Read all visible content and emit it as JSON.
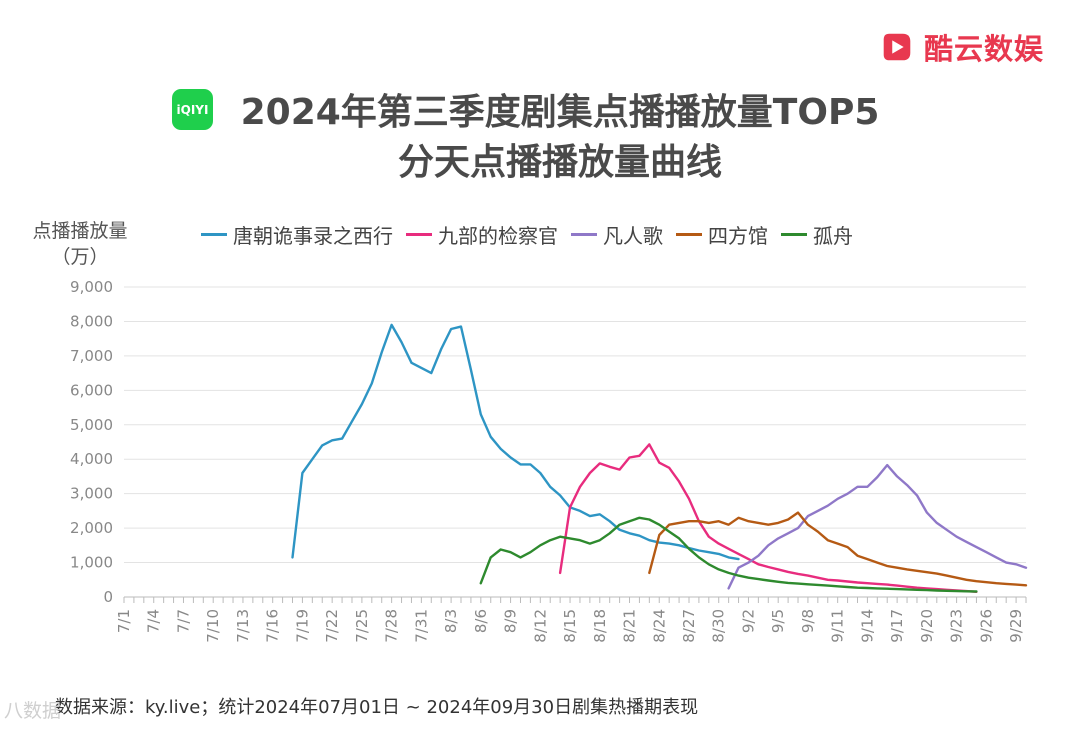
{
  "brand": {
    "name": "酷云数娱",
    "color": "#e8384f"
  },
  "platform_logo": {
    "text": "iQIYI",
    "color": "#1fcf4c"
  },
  "footer": {
    "source": "数据来源：ky.live；统计2024年07月01日 ~ 2024年09月30日剧集热播期表现"
  },
  "watermark": {
    "text": "八数据"
  },
  "chart_data": {
    "type": "line",
    "title": [
      "2024年第三季度剧集点播播放量TOP5",
      "分天点播播放量曲线"
    ],
    "ylabel": [
      "点播播放量",
      "（万）"
    ],
    "ylim": [
      0,
      9000
    ],
    "yticks": [
      0,
      1000,
      2000,
      3000,
      4000,
      5000,
      6000,
      7000,
      8000,
      9000
    ],
    "ytick_labels": [
      "0",
      "1,000",
      "2,000",
      "3,000",
      "4,000",
      "5,000",
      "6,000",
      "7,000",
      "8,000",
      "9,000"
    ],
    "xlim": [
      "7/1",
      "9/30"
    ],
    "x_tick_labels": [
      "7/1",
      "7/4",
      "7/7",
      "7/10",
      "7/13",
      "7/16",
      "7/19",
      "7/22",
      "7/25",
      "7/28",
      "7/31",
      "8/3",
      "8/6",
      "8/9",
      "8/12",
      "8/15",
      "8/18",
      "8/21",
      "8/24",
      "8/27",
      "8/30",
      "9/2",
      "9/5",
      "9/8",
      "9/11",
      "9/14",
      "9/17",
      "9/20",
      "9/23",
      "9/26",
      "9/29"
    ],
    "grid": "horizontal",
    "legend_position": "top",
    "series": [
      {
        "name": "唐朝诡事录之西行",
        "color": "#2e95c4",
        "points": [
          [
            "7/18",
            1150
          ],
          [
            "7/19",
            3600
          ],
          [
            "7/20",
            4000
          ],
          [
            "7/21",
            4400
          ],
          [
            "7/22",
            4550
          ],
          [
            "7/23",
            4600
          ],
          [
            "7/24",
            5100
          ],
          [
            "7/25",
            5600
          ],
          [
            "7/26",
            6200
          ],
          [
            "7/27",
            7100
          ],
          [
            "7/28",
            7900
          ],
          [
            "7/29",
            7400
          ],
          [
            "7/30",
            6800
          ],
          [
            "7/31",
            6650
          ],
          [
            "8/1",
            6500
          ],
          [
            "8/2",
            7200
          ],
          [
            "8/3",
            7780
          ],
          [
            "8/4",
            7850
          ],
          [
            "8/5",
            6600
          ],
          [
            "8/6",
            5300
          ],
          [
            "8/7",
            4650
          ],
          [
            "8/8",
            4300
          ],
          [
            "8/9",
            4050
          ],
          [
            "8/10",
            3850
          ],
          [
            "8/11",
            3850
          ],
          [
            "8/12",
            3600
          ],
          [
            "8/13",
            3200
          ],
          [
            "8/14",
            2950
          ],
          [
            "8/15",
            2600
          ],
          [
            "8/16",
            2500
          ],
          [
            "8/17",
            2350
          ],
          [
            "8/18",
            2400
          ],
          [
            "8/19",
            2200
          ],
          [
            "8/20",
            1950
          ],
          [
            "8/21",
            1850
          ],
          [
            "8/22",
            1780
          ],
          [
            "8/23",
            1650
          ],
          [
            "8/24",
            1580
          ],
          [
            "8/25",
            1550
          ],
          [
            "8/26",
            1500
          ],
          [
            "8/27",
            1420
          ],
          [
            "8/28",
            1350
          ],
          [
            "8/29",
            1300
          ],
          [
            "8/30",
            1250
          ],
          [
            "8/31",
            1150
          ],
          [
            "9/1",
            1100
          ]
        ]
      },
      {
        "name": "九部的检察官",
        "color": "#e82c7e",
        "points": [
          [
            "8/14",
            700
          ],
          [
            "8/15",
            2600
          ],
          [
            "8/16",
            3200
          ],
          [
            "8/17",
            3600
          ],
          [
            "8/18",
            3880
          ],
          [
            "8/19",
            3780
          ],
          [
            "8/20",
            3700
          ],
          [
            "8/21",
            4050
          ],
          [
            "8/22",
            4100
          ],
          [
            "8/23",
            4430
          ],
          [
            "8/24",
            3900
          ],
          [
            "8/25",
            3750
          ],
          [
            "8/26",
            3350
          ],
          [
            "8/27",
            2850
          ],
          [
            "8/28",
            2200
          ],
          [
            "8/29",
            1750
          ],
          [
            "8/30",
            1550
          ],
          [
            "8/31",
            1400
          ],
          [
            "9/1",
            1250
          ],
          [
            "9/2",
            1100
          ],
          [
            "9/3",
            950
          ],
          [
            "9/4",
            870
          ],
          [
            "9/5",
            800
          ],
          [
            "9/6",
            730
          ],
          [
            "9/7",
            670
          ],
          [
            "9/8",
            620
          ],
          [
            "9/9",
            560
          ],
          [
            "9/10",
            500
          ],
          [
            "9/11",
            480
          ],
          [
            "9/12",
            450
          ],
          [
            "9/13",
            420
          ],
          [
            "9/14",
            400
          ],
          [
            "9/15",
            380
          ],
          [
            "9/16",
            360
          ],
          [
            "9/17",
            330
          ],
          [
            "9/18",
            300
          ],
          [
            "9/19",
            270
          ],
          [
            "9/20",
            250
          ],
          [
            "9/21",
            230
          ],
          [
            "9/22",
            210
          ],
          [
            "9/23",
            190
          ],
          [
            "9/24",
            170
          ],
          [
            "9/25",
            150
          ]
        ]
      },
      {
        "name": "凡人歌",
        "color": "#8f78c8",
        "points": [
          [
            "8/31",
            250
          ],
          [
            "9/1",
            850
          ],
          [
            "9/2",
            1000
          ],
          [
            "9/3",
            1200
          ],
          [
            "9/4",
            1500
          ],
          [
            "9/5",
            1700
          ],
          [
            "9/6",
            1850
          ],
          [
            "9/7",
            2000
          ],
          [
            "9/8",
            2350
          ],
          [
            "9/9",
            2500
          ],
          [
            "9/10",
            2650
          ],
          [
            "9/11",
            2850
          ],
          [
            "9/12",
            3000
          ],
          [
            "9/13",
            3200
          ],
          [
            "9/14",
            3200
          ],
          [
            "9/15",
            3480
          ],
          [
            "9/16",
            3830
          ],
          [
            "9/17",
            3500
          ],
          [
            "9/18",
            3250
          ],
          [
            "9/19",
            2950
          ],
          [
            "9/20",
            2450
          ],
          [
            "9/21",
            2150
          ],
          [
            "9/22",
            1950
          ],
          [
            "9/23",
            1750
          ],
          [
            "9/24",
            1600
          ],
          [
            "9/25",
            1450
          ],
          [
            "9/26",
            1300
          ],
          [
            "9/27",
            1150
          ],
          [
            "9/28",
            1000
          ],
          [
            "9/29",
            950
          ],
          [
            "9/30",
            850
          ]
        ]
      },
      {
        "name": "四方馆",
        "color": "#b55a14",
        "points": [
          [
            "8/23",
            700
          ],
          [
            "8/24",
            1800
          ],
          [
            "8/25",
            2100
          ],
          [
            "8/26",
            2150
          ],
          [
            "8/27",
            2200
          ],
          [
            "8/28",
            2200
          ],
          [
            "8/29",
            2150
          ],
          [
            "8/30",
            2200
          ],
          [
            "8/31",
            2100
          ],
          [
            "9/1",
            2300
          ],
          [
            "9/2",
            2200
          ],
          [
            "9/3",
            2150
          ],
          [
            "9/4",
            2100
          ],
          [
            "9/5",
            2150
          ],
          [
            "9/6",
            2250
          ],
          [
            "9/7",
            2450
          ],
          [
            "9/8",
            2100
          ],
          [
            "9/9",
            1900
          ],
          [
            "9/10",
            1650
          ],
          [
            "9/11",
            1550
          ],
          [
            "9/12",
            1450
          ],
          [
            "9/13",
            1200
          ],
          [
            "9/14",
            1100
          ],
          [
            "9/15",
            1000
          ],
          [
            "9/16",
            900
          ],
          [
            "9/17",
            850
          ],
          [
            "9/18",
            800
          ],
          [
            "9/19",
            760
          ],
          [
            "9/20",
            720
          ],
          [
            "9/21",
            680
          ],
          [
            "9/22",
            620
          ],
          [
            "9/23",
            560
          ],
          [
            "9/24",
            500
          ],
          [
            "9/25",
            460
          ],
          [
            "9/26",
            430
          ],
          [
            "9/27",
            400
          ],
          [
            "9/28",
            380
          ],
          [
            "9/29",
            360
          ],
          [
            "9/30",
            340
          ]
        ]
      },
      {
        "name": "孤舟",
        "color": "#2e8a2e",
        "points": [
          [
            "8/6",
            400
          ],
          [
            "8/7",
            1150
          ],
          [
            "8/8",
            1380
          ],
          [
            "8/9",
            1300
          ],
          [
            "8/10",
            1150
          ],
          [
            "8/11",
            1300
          ],
          [
            "8/12",
            1500
          ],
          [
            "8/13",
            1650
          ],
          [
            "8/14",
            1750
          ],
          [
            "8/15",
            1700
          ],
          [
            "8/16",
            1650
          ],
          [
            "8/17",
            1550
          ],
          [
            "8/18",
            1650
          ],
          [
            "8/19",
            1850
          ],
          [
            "8/20",
            2100
          ],
          [
            "8/21",
            2200
          ],
          [
            "8/22",
            2300
          ],
          [
            "8/23",
            2250
          ],
          [
            "8/24",
            2100
          ],
          [
            "8/25",
            1900
          ],
          [
            "8/26",
            1700
          ],
          [
            "8/27",
            1400
          ],
          [
            "8/28",
            1150
          ],
          [
            "8/29",
            950
          ],
          [
            "8/30",
            800
          ],
          [
            "8/31",
            700
          ],
          [
            "9/1",
            620
          ],
          [
            "9/2",
            560
          ],
          [
            "9/3",
            520
          ],
          [
            "9/4",
            480
          ],
          [
            "9/5",
            440
          ],
          [
            "9/6",
            410
          ],
          [
            "9/7",
            390
          ],
          [
            "9/8",
            370
          ],
          [
            "9/9",
            350
          ],
          [
            "9/10",
            330
          ],
          [
            "9/11",
            310
          ],
          [
            "9/12",
            290
          ],
          [
            "9/13",
            270
          ],
          [
            "9/14",
            260
          ],
          [
            "9/15",
            250
          ],
          [
            "9/16",
            240
          ],
          [
            "9/17",
            230
          ],
          [
            "9/18",
            220
          ],
          [
            "9/19",
            210
          ],
          [
            "9/20",
            200
          ],
          [
            "9/21",
            190
          ],
          [
            "9/22",
            180
          ],
          [
            "9/23",
            170
          ],
          [
            "9/24",
            165
          ],
          [
            "9/25",
            160
          ]
        ]
      }
    ]
  }
}
